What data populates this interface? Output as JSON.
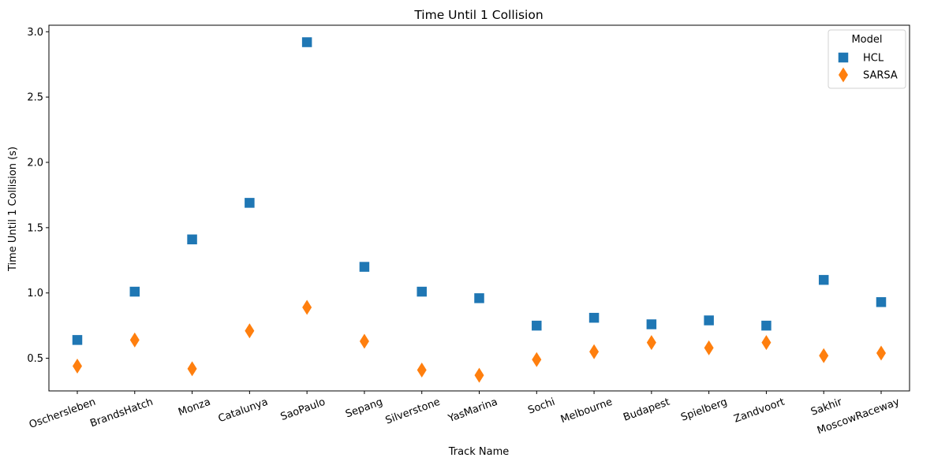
{
  "chart_data": {
    "type": "scatter",
    "title": "Time Until 1 Collision",
    "xlabel": "Track Name",
    "ylabel": "Time Until 1 Collision (s)",
    "categories": [
      "Oschersleben",
      "BrandsHatch",
      "Monza",
      "Catalunya",
      "SaoPaulo",
      "Sepang",
      "Silverstone",
      "YasMarina",
      "Sochi",
      "Melbourne",
      "Budapest",
      "Spielberg",
      "Zandvoort",
      "Sakhir",
      "MoscowRaceway"
    ],
    "ylim": [
      0.25,
      3.05
    ],
    "yticks": [
      0.5,
      1.0,
      1.5,
      2.0,
      2.5,
      3.0
    ],
    "ytick_labels": [
      "0.5",
      "1.0",
      "1.5",
      "2.0",
      "2.5",
      "3.0"
    ],
    "grid": false,
    "x_tick_rotation": "rotated about 20 degrees",
    "legend": {
      "title": "Model",
      "placement": "top-right"
    },
    "series": [
      {
        "name": "HCL",
        "marker": "square",
        "color": "#1f77b4",
        "values": [
          0.64,
          1.01,
          1.41,
          1.69,
          2.92,
          1.2,
          1.01,
          0.96,
          0.75,
          0.81,
          0.76,
          0.79,
          0.75,
          1.1,
          0.93
        ]
      },
      {
        "name": "SARSA",
        "marker": "diamond",
        "color": "#ff7f0e",
        "values": [
          0.44,
          0.64,
          0.42,
          0.71,
          0.89,
          0.63,
          0.41,
          0.37,
          0.49,
          0.55,
          0.62,
          0.58,
          0.62,
          0.52,
          0.54
        ]
      }
    ]
  }
}
